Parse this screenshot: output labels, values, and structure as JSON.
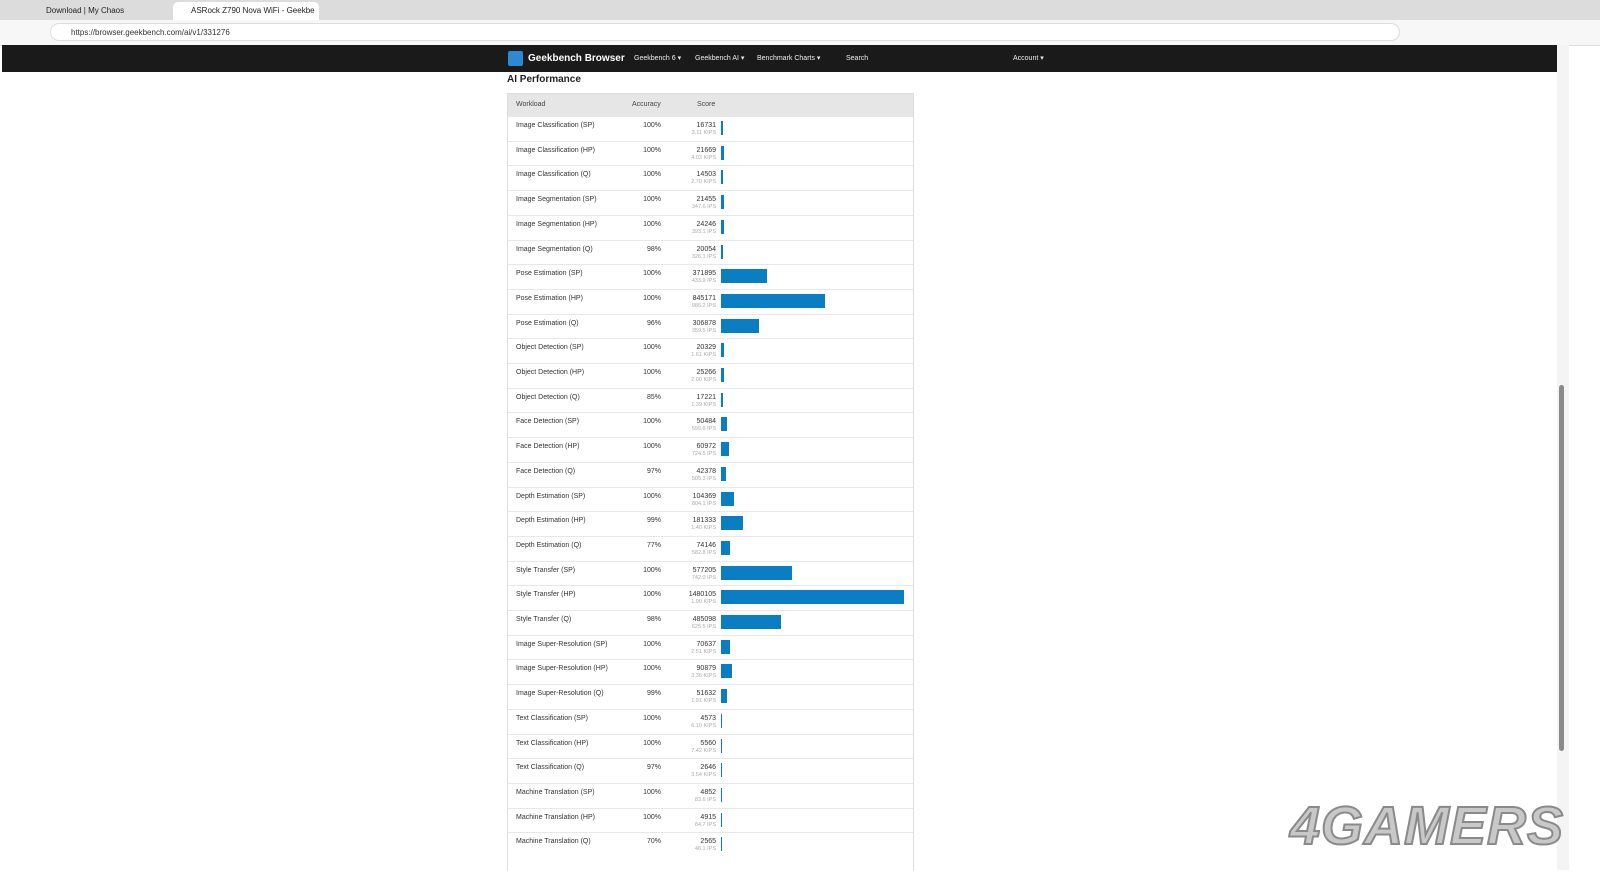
{
  "browser": {
    "tabs": [
      "Download | My Chaos",
      "ASRock Z790 Nova WiFi - Geekbe"
    ],
    "url": "https://browser.geekbench.com/ai/v1/331276"
  },
  "nav": {
    "brand": "Geekbench Browser",
    "items": [
      "Geekbench 6",
      "Geekbench AI",
      "Benchmark Charts"
    ],
    "search": "Search",
    "account": "Account"
  },
  "section": {
    "title": "AI Performance",
    "columns": [
      "Workload",
      "Accuracy",
      "Score"
    ],
    "rows": [
      {
        "workload": "Image Classification (SP)",
        "accuracy": "100%",
        "score": 16731,
        "rate": "3.11 KIPS"
      },
      {
        "workload": "Image Classification (HP)",
        "accuracy": "100%",
        "score": 21669,
        "rate": "4.03 KIPS"
      },
      {
        "workload": "Image Classification (Q)",
        "accuracy": "100%",
        "score": 14503,
        "rate": "2.70 KIPS"
      },
      {
        "workload": "Image Segmentation (SP)",
        "accuracy": "100%",
        "score": 21455,
        "rate": "347.6 IPS"
      },
      {
        "workload": "Image Segmentation (HP)",
        "accuracy": "100%",
        "score": 24246,
        "rate": "393.1 IPS"
      },
      {
        "workload": "Image Segmentation (Q)",
        "accuracy": "98%",
        "score": 20054,
        "rate": "326.1 IPS"
      },
      {
        "workload": "Pose Estimation (SP)",
        "accuracy": "100%",
        "score": 371895,
        "rate": "433.9 IPS"
      },
      {
        "workload": "Pose Estimation (HP)",
        "accuracy": "100%",
        "score": 845171,
        "rate": "986.2 IPS"
      },
      {
        "workload": "Pose Estimation (Q)",
        "accuracy": "96%",
        "score": 306878,
        "rate": "359.5 IPS"
      },
      {
        "workload": "Object Detection (SP)",
        "accuracy": "100%",
        "score": 20329,
        "rate": "1.61 KIPS"
      },
      {
        "workload": "Object Detection (HP)",
        "accuracy": "100%",
        "score": 25266,
        "rate": "2.00 KIPS"
      },
      {
        "workload": "Object Detection (Q)",
        "accuracy": "85%",
        "score": 17221,
        "rate": "1.39 KIPS"
      },
      {
        "workload": "Face Detection (SP)",
        "accuracy": "100%",
        "score": 50484,
        "rate": "599.6 IPS"
      },
      {
        "workload": "Face Detection (HP)",
        "accuracy": "100%",
        "score": 60972,
        "rate": "724.5 IPS"
      },
      {
        "workload": "Face Detection (Q)",
        "accuracy": "97%",
        "score": 42378,
        "rate": "505.3 IPS"
      },
      {
        "workload": "Depth Estimation (SP)",
        "accuracy": "100%",
        "score": 104369,
        "rate": "804.1 IPS"
      },
      {
        "workload": "Depth Estimation (HP)",
        "accuracy": "99%",
        "score": 181333,
        "rate": "1.40 KIPS"
      },
      {
        "workload": "Depth Estimation (Q)",
        "accuracy": "77%",
        "score": 74146,
        "rate": "582.8 IPS"
      },
      {
        "workload": "Style Transfer (SP)",
        "accuracy": "100%",
        "score": 577205,
        "rate": "742.0 IPS"
      },
      {
        "workload": "Style Transfer (HP)",
        "accuracy": "100%",
        "score": 1480105,
        "rate": "1.90 KIPS"
      },
      {
        "workload": "Style Transfer (Q)",
        "accuracy": "98%",
        "score": 485098,
        "rate": "625.5 IPS"
      },
      {
        "workload": "Image Super-Resolution (SP)",
        "accuracy": "100%",
        "score": 70637,
        "rate": "2.51 KIPS"
      },
      {
        "workload": "Image Super-Resolution (HP)",
        "accuracy": "100%",
        "score": 90879,
        "rate": "3.36 KIPS"
      },
      {
        "workload": "Image Super-Resolution (Q)",
        "accuracy": "99%",
        "score": 51632,
        "rate": "1.91 KIPS"
      },
      {
        "workload": "Text Classification (SP)",
        "accuracy": "100%",
        "score": 4573,
        "rate": "6.10 KIPS"
      },
      {
        "workload": "Text Classification (HP)",
        "accuracy": "100%",
        "score": 5560,
        "rate": "7.42 KIPS"
      },
      {
        "workload": "Text Classification (Q)",
        "accuracy": "97%",
        "score": 2646,
        "rate": "3.54 KIPS"
      },
      {
        "workload": "Machine Translation (SP)",
        "accuracy": "100%",
        "score": 4852,
        "rate": "83.6 IPS"
      },
      {
        "workload": "Machine Translation (HP)",
        "accuracy": "100%",
        "score": 4915,
        "rate": "84.7 IPS"
      },
      {
        "workload": "Machine Translation (Q)",
        "accuracy": "70%",
        "score": 2565,
        "rate": "46.1 IPS"
      }
    ]
  },
  "watermark": "4GAMERS"
}
